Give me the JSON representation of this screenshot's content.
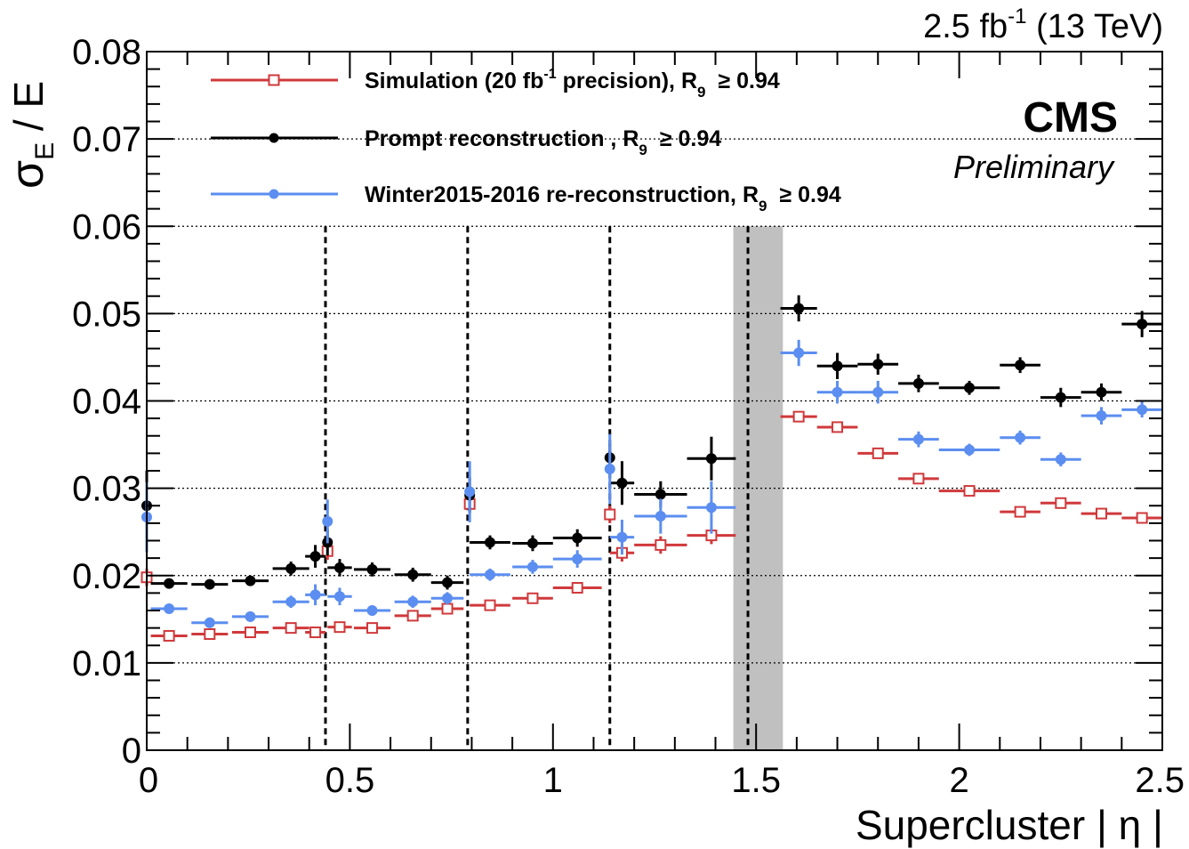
{
  "chart_data": {
    "type": "scatter",
    "xlabel": "Supercluster | η |",
    "ylabel": "σE / E",
    "ylabel_main": "σ",
    "ylabel_sub": "E",
    "ylabel_rest": " / E",
    "lumi_text": "2.5 fb-1 (13 TeV)",
    "lumi_pre": "2.5 fb",
    "lumi_sup": "-1",
    "lumi_post": " (13 TeV)",
    "experiment": "CMS",
    "status": "Preliminary",
    "xlim": [
      0,
      2.5
    ],
    "ylim": [
      0,
      0.08
    ],
    "x_ticks": [
      "0",
      "0.5",
      "1",
      "1.5",
      "2",
      "2.5"
    ],
    "y_ticks": [
      "0",
      "0.01",
      "0.02",
      "0.03",
      "0.04",
      "0.05",
      "0.06",
      "0.07",
      "0.08"
    ],
    "vertical_dashed_lines": [
      0.44,
      0.79,
      1.14,
      1.48
    ],
    "excluded_band": [
      1.444,
      1.566
    ],
    "series": [
      {
        "name": "Simulation (20 fb-1 precision), R9 ≥ 0.94",
        "legend_pre": "Simulation (20 fb",
        "legend_sup": "-1",
        "legend_mid": " precision), R",
        "legend_sub": "9",
        "legend_post": "≥ 0.94",
        "color": "#d0393b",
        "marker": "open-square",
        "points": [
          {
            "x": 0.0,
            "y": 0.0198,
            "xerr": 0.0,
            "yerr": 0.001
          },
          {
            "x": 0.055,
            "y": 0.0131,
            "xerr": 0.045,
            "yerr": 0.0005
          },
          {
            "x": 0.155,
            "y": 0.0133,
            "xerr": 0.045,
            "yerr": 0.0005
          },
          {
            "x": 0.255,
            "y": 0.0135,
            "xerr": 0.045,
            "yerr": 0.0005
          },
          {
            "x": 0.355,
            "y": 0.014,
            "xerr": 0.045,
            "yerr": 0.0005
          },
          {
            "x": 0.415,
            "y": 0.0135,
            "xerr": 0.025,
            "yerr": 0.0005
          },
          {
            "x": 0.445,
            "y": 0.0228,
            "xerr": 0.0,
            "yerr": 0.001
          },
          {
            "x": 0.475,
            "y": 0.0141,
            "xerr": 0.03,
            "yerr": 0.0005
          },
          {
            "x": 0.555,
            "y": 0.014,
            "xerr": 0.045,
            "yerr": 0.0005
          },
          {
            "x": 0.655,
            "y": 0.0154,
            "xerr": 0.045,
            "yerr": 0.0005
          },
          {
            "x": 0.74,
            "y": 0.0162,
            "xerr": 0.04,
            "yerr": 0.0005
          },
          {
            "x": 0.795,
            "y": 0.0282,
            "xerr": 0.0,
            "yerr": 0.001
          },
          {
            "x": 0.845,
            "y": 0.0166,
            "xerr": 0.05,
            "yerr": 0.0005
          },
          {
            "x": 0.95,
            "y": 0.0174,
            "xerr": 0.05,
            "yerr": 0.0005
          },
          {
            "x": 1.06,
            "y": 0.0186,
            "xerr": 0.06,
            "yerr": 0.0005
          },
          {
            "x": 1.14,
            "y": 0.027,
            "xerr": 0.0,
            "yerr": 0.001
          },
          {
            "x": 1.17,
            "y": 0.0226,
            "xerr": 0.03,
            "yerr": 0.001
          },
          {
            "x": 1.265,
            "y": 0.0235,
            "xerr": 0.065,
            "yerr": 0.001
          },
          {
            "x": 1.39,
            "y": 0.0246,
            "xerr": 0.06,
            "yerr": 0.001
          },
          {
            "x": 1.605,
            "y": 0.0382,
            "xerr": 0.045,
            "yerr": 0.0005
          },
          {
            "x": 1.7,
            "y": 0.037,
            "xerr": 0.05,
            "yerr": 0.0005
          },
          {
            "x": 1.8,
            "y": 0.034,
            "xerr": 0.05,
            "yerr": 0.0005
          },
          {
            "x": 1.9,
            "y": 0.0311,
            "xerr": 0.05,
            "yerr": 0.0005
          },
          {
            "x": 2.025,
            "y": 0.0297,
            "xerr": 0.075,
            "yerr": 0.0005
          },
          {
            "x": 2.15,
            "y": 0.0273,
            "xerr": 0.05,
            "yerr": 0.0005
          },
          {
            "x": 2.25,
            "y": 0.0283,
            "xerr": 0.05,
            "yerr": 0.0005
          },
          {
            "x": 2.35,
            "y": 0.0271,
            "xerr": 0.05,
            "yerr": 0.0005
          },
          {
            "x": 2.45,
            "y": 0.0266,
            "xerr": 0.05,
            "yerr": 0.0005
          }
        ]
      },
      {
        "name": "Prompt reconstruction , R9 ≥ 0.94",
        "legend_pre": "Prompt reconstruction",
        "legend_sup": "",
        "legend_mid": " , R",
        "legend_sub": "9",
        "legend_post": "≥ 0.94",
        "color": "#000000",
        "marker": "filled-circle",
        "points": [
          {
            "x": 0.0,
            "y": 0.028,
            "xerr": 0.0,
            "yerr": 0.004
          },
          {
            "x": 0.055,
            "y": 0.0191,
            "xerr": 0.045,
            "yerr": 0.0005
          },
          {
            "x": 0.155,
            "y": 0.019,
            "xerr": 0.045,
            "yerr": 0.0005
          },
          {
            "x": 0.255,
            "y": 0.0194,
            "xerr": 0.045,
            "yerr": 0.0005
          },
          {
            "x": 0.355,
            "y": 0.0208,
            "xerr": 0.045,
            "yerr": 0.0008
          },
          {
            "x": 0.415,
            "y": 0.0222,
            "xerr": 0.025,
            "yerr": 0.0013
          },
          {
            "x": 0.445,
            "y": 0.0238,
            "xerr": 0.0,
            "yerr": 0.0015
          },
          {
            "x": 0.475,
            "y": 0.0209,
            "xerr": 0.03,
            "yerr": 0.001
          },
          {
            "x": 0.555,
            "y": 0.0207,
            "xerr": 0.045,
            "yerr": 0.0008
          },
          {
            "x": 0.655,
            "y": 0.0201,
            "xerr": 0.045,
            "yerr": 0.0008
          },
          {
            "x": 0.74,
            "y": 0.0192,
            "xerr": 0.04,
            "yerr": 0.0008
          },
          {
            "x": 0.795,
            "y": 0.0292,
            "xerr": 0.0,
            "yerr": 0.002
          },
          {
            "x": 0.845,
            "y": 0.0238,
            "xerr": 0.05,
            "yerr": 0.0008
          },
          {
            "x": 0.95,
            "y": 0.0237,
            "xerr": 0.05,
            "yerr": 0.0009
          },
          {
            "x": 1.06,
            "y": 0.0243,
            "xerr": 0.06,
            "yerr": 0.001
          },
          {
            "x": 1.14,
            "y": 0.0335,
            "xerr": 0.0,
            "yerr": 0.0015
          },
          {
            "x": 1.17,
            "y": 0.0306,
            "xerr": 0.03,
            "yerr": 0.0025
          },
          {
            "x": 1.265,
            "y": 0.0293,
            "xerr": 0.065,
            "yerr": 0.0015
          },
          {
            "x": 1.39,
            "y": 0.0334,
            "xerr": 0.06,
            "yerr": 0.0025
          },
          {
            "x": 1.605,
            "y": 0.0506,
            "xerr": 0.045,
            "yerr": 0.0015
          },
          {
            "x": 1.7,
            "y": 0.044,
            "xerr": 0.05,
            "yerr": 0.0015
          },
          {
            "x": 1.8,
            "y": 0.0442,
            "xerr": 0.05,
            "yerr": 0.0012
          },
          {
            "x": 1.9,
            "y": 0.042,
            "xerr": 0.05,
            "yerr": 0.001
          },
          {
            "x": 2.025,
            "y": 0.0415,
            "xerr": 0.075,
            "yerr": 0.0008
          },
          {
            "x": 2.15,
            "y": 0.0441,
            "xerr": 0.05,
            "yerr": 0.0009
          },
          {
            "x": 2.25,
            "y": 0.0404,
            "xerr": 0.05,
            "yerr": 0.0011
          },
          {
            "x": 2.35,
            "y": 0.041,
            "xerr": 0.05,
            "yerr": 0.001
          },
          {
            "x": 2.45,
            "y": 0.0488,
            "xerr": 0.05,
            "yerr": 0.0015
          }
        ]
      },
      {
        "name": "Winter2015-2016 re-reconstruction, R9 ≥ 0.94",
        "legend_pre": "Winter2015-2016 re-reconstruction",
        "legend_sup": "",
        "legend_mid": ", R",
        "legend_sub": "9",
        "legend_post": "≥ 0.94",
        "color": "#5b8ef0",
        "marker": "filled-circle",
        "points": [
          {
            "x": 0.0,
            "y": 0.0267,
            "xerr": 0.0,
            "yerr": 0.004
          },
          {
            "x": 0.055,
            "y": 0.0162,
            "xerr": 0.045,
            "yerr": 0.0005
          },
          {
            "x": 0.155,
            "y": 0.0146,
            "xerr": 0.045,
            "yerr": 0.0006
          },
          {
            "x": 0.255,
            "y": 0.0153,
            "xerr": 0.045,
            "yerr": 0.0006
          },
          {
            "x": 0.355,
            "y": 0.017,
            "xerr": 0.045,
            "yerr": 0.0007
          },
          {
            "x": 0.415,
            "y": 0.0178,
            "xerr": 0.025,
            "yerr": 0.0012
          },
          {
            "x": 0.445,
            "y": 0.0262,
            "xerr": 0.0,
            "yerr": 0.0025
          },
          {
            "x": 0.475,
            "y": 0.0176,
            "xerr": 0.03,
            "yerr": 0.001
          },
          {
            "x": 0.555,
            "y": 0.016,
            "xerr": 0.045,
            "yerr": 0.0006
          },
          {
            "x": 0.655,
            "y": 0.017,
            "xerr": 0.045,
            "yerr": 0.0007
          },
          {
            "x": 0.74,
            "y": 0.0174,
            "xerr": 0.04,
            "yerr": 0.0007
          },
          {
            "x": 0.795,
            "y": 0.0296,
            "xerr": 0.0,
            "yerr": 0.0035
          },
          {
            "x": 0.845,
            "y": 0.0201,
            "xerr": 0.05,
            "yerr": 0.0007
          },
          {
            "x": 0.95,
            "y": 0.021,
            "xerr": 0.05,
            "yerr": 0.0008
          },
          {
            "x": 1.06,
            "y": 0.0219,
            "xerr": 0.06,
            "yerr": 0.001
          },
          {
            "x": 1.14,
            "y": 0.0322,
            "xerr": 0.0,
            "yerr": 0.004
          },
          {
            "x": 1.17,
            "y": 0.0244,
            "xerr": 0.03,
            "yerr": 0.002
          },
          {
            "x": 1.265,
            "y": 0.0268,
            "xerr": 0.065,
            "yerr": 0.002
          },
          {
            "x": 1.39,
            "y": 0.0278,
            "xerr": 0.06,
            "yerr": 0.003
          },
          {
            "x": 1.605,
            "y": 0.0455,
            "xerr": 0.045,
            "yerr": 0.0015
          },
          {
            "x": 1.7,
            "y": 0.041,
            "xerr": 0.05,
            "yerr": 0.0013
          },
          {
            "x": 1.8,
            "y": 0.041,
            "xerr": 0.05,
            "yerr": 0.0013
          },
          {
            "x": 1.9,
            "y": 0.0356,
            "xerr": 0.05,
            "yerr": 0.0009
          },
          {
            "x": 2.025,
            "y": 0.0344,
            "xerr": 0.075,
            "yerr": 0.0007
          },
          {
            "x": 2.15,
            "y": 0.0358,
            "xerr": 0.05,
            "yerr": 0.0008
          },
          {
            "x": 2.25,
            "y": 0.0333,
            "xerr": 0.05,
            "yerr": 0.0008
          },
          {
            "x": 2.35,
            "y": 0.0383,
            "xerr": 0.05,
            "yerr": 0.001
          },
          {
            "x": 2.45,
            "y": 0.039,
            "xerr": 0.05,
            "yerr": 0.0009
          }
        ]
      }
    ]
  }
}
